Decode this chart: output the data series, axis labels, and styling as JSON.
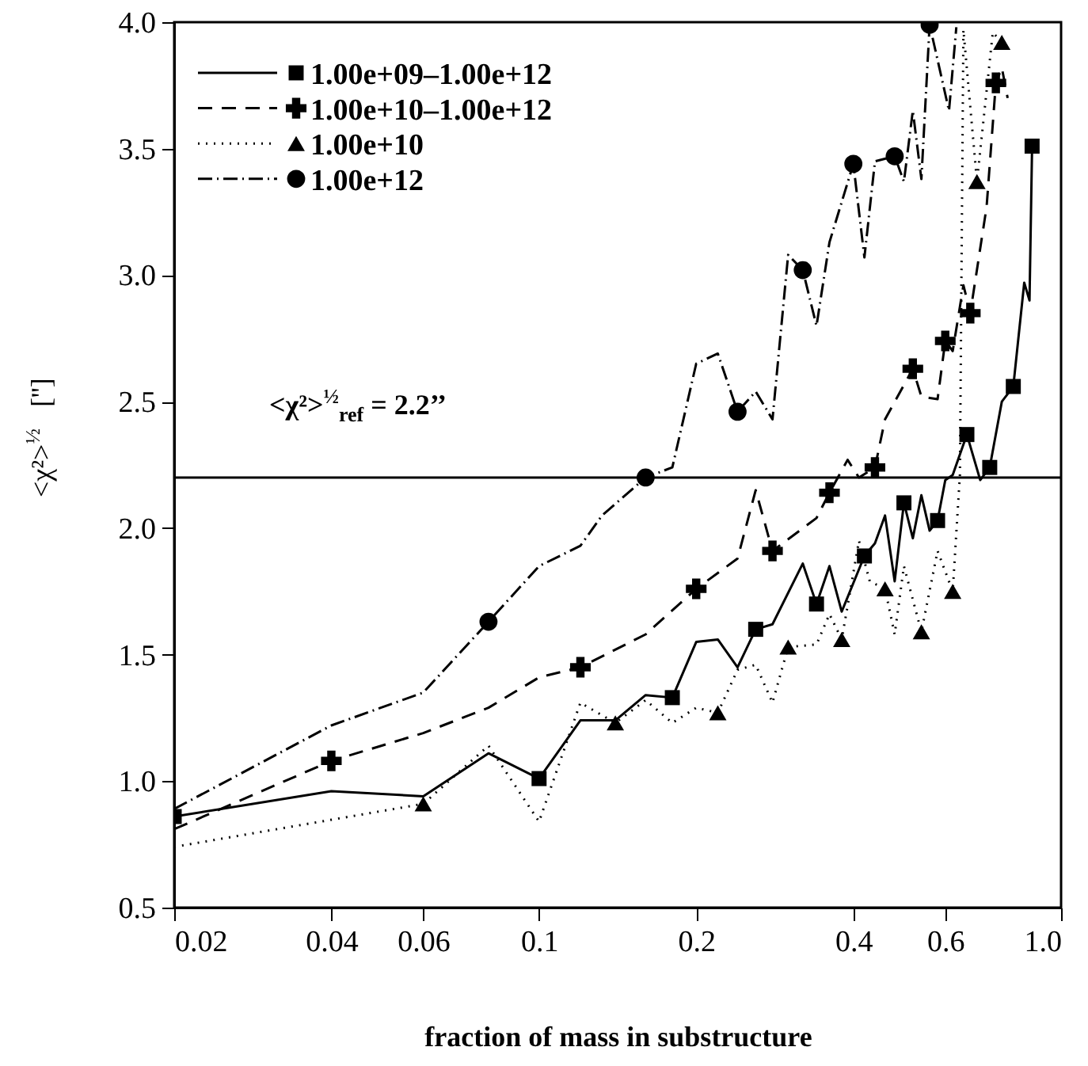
{
  "chart_data": {
    "type": "line",
    "xlabel": "fraction of mass in substructure",
    "ylabel": "<χ²>$^{½}$   ['']",
    "xlim": [
      0.02,
      1
    ],
    "xticks": [
      0.02,
      0.04,
      0.06,
      0.1,
      0.2,
      0.4,
      0.6,
      {
        "value": 1,
        "label": "1.0"
      }
    ],
    "ylim": [
      0.5,
      4
    ],
    "yticks": [
      0.5,
      {
        "value": 1,
        "label": "1.0"
      },
      1.5,
      {
        "value": 2,
        "label": "2.0"
      },
      2.5,
      {
        "value": 3,
        "label": "3.0"
      },
      3.5,
      {
        "value": 4,
        "label": "4.0"
      }
    ],
    "log": "x",
    "grid": false,
    "legend": "top left",
    "ref_lines": [
      {
        "axis": "y",
        "value": 2.2,
        "label": "<χ²>$^{½}$$_{ref}$ = 2.2’’",
        "color": "#000000"
      }
    ],
    "series": [
      {
        "name": "1.00e+09–1.00e+12",
        "type": "line",
        "line_style": "solid",
        "color": "#000000",
        "x": [
          0.02,
          0.04,
          0.06,
          0.08,
          0.1,
          0.12,
          0.14,
          0.16,
          0.18,
          0.2,
          0.22,
          0.24,
          0.26,
          0.28,
          0.32,
          0.34,
          0.36,
          0.38,
          0.42,
          0.44,
          0.46,
          0.48,
          0.5,
          0.52,
          0.54,
          0.56,
          0.58,
          0.6,
          0.62,
          0.66,
          0.7,
          0.73,
          0.77,
          0.81,
          0.85,
          0.87,
          0.88
        ],
        "values": [
          0.86,
          0.96,
          0.94,
          1.11,
          1.01,
          1.24,
          1.24,
          1.34,
          1.33,
          1.55,
          1.56,
          1.45,
          1.6,
          1.62,
          1.86,
          1.7,
          1.85,
          1.67,
          1.89,
          1.94,
          2.05,
          1.79,
          2.1,
          1.96,
          2.13,
          1.99,
          2.03,
          2.19,
          2.21,
          2.37,
          2.19,
          2.24,
          2.5,
          2.56,
          2.97,
          2.9,
          3.51
        ]
      },
      {
        "type": "scatter",
        "marker": "square",
        "color": "#000000",
        "x": [
          0.02,
          0.1,
          0.18,
          0.26,
          0.34,
          0.42,
          0.5,
          0.58,
          0.66,
          0.73,
          0.81,
          0.88
        ],
        "values": [
          0.86,
          1.01,
          1.33,
          1.6,
          1.7,
          1.89,
          2.1,
          2.03,
          2.37,
          2.24,
          2.56,
          3.51
        ]
      },
      {
        "name": "1.00e+10–1.00e+12",
        "type": "line",
        "line_style": "dashed",
        "color": "#000000",
        "x": [
          0.02,
          0.04,
          0.06,
          0.08,
          0.1,
          0.12,
          0.16,
          0.2,
          0.24,
          0.26,
          0.28,
          0.34,
          0.36,
          0.39,
          0.41,
          0.44,
          0.46,
          0.52,
          0.54,
          0.58,
          0.6,
          0.62,
          0.65,
          0.67,
          0.72,
          0.75,
          0.77,
          0.79
        ],
        "values": [
          0.81,
          1.08,
          1.19,
          1.29,
          1.41,
          1.45,
          1.58,
          1.76,
          1.88,
          2.15,
          1.91,
          2.04,
          2.14,
          2.27,
          2.2,
          2.24,
          2.43,
          2.63,
          2.52,
          2.51,
          2.74,
          2.7,
          2.96,
          2.85,
          3.27,
          3.76,
          3.82,
          3.7
        ]
      },
      {
        "type": "scatter",
        "marker": "cross",
        "color": "#000000",
        "x": [
          0.04,
          0.12,
          0.2,
          0.28,
          0.36,
          0.44,
          0.52,
          0.6,
          0.67,
          0.75
        ],
        "values": [
          1.08,
          1.45,
          1.76,
          1.91,
          2.14,
          2.24,
          2.63,
          2.74,
          2.85,
          3.76
        ]
      },
      {
        "name": "1.00e+10",
        "type": "line",
        "line_style": "dotted",
        "color": "#000000",
        "x": [
          0.02,
          0.06,
          0.08,
          0.1,
          0.12,
          0.14,
          0.16,
          0.18,
          0.2,
          0.22,
          0.24,
          0.26,
          0.28,
          0.3,
          0.34,
          0.36,
          0.38,
          0.41,
          0.43,
          0.46,
          0.48,
          0.5,
          0.54,
          0.58,
          0.62,
          0.64,
          0.65,
          0.69,
          0.74,
          0.77
        ],
        "values": [
          0.74,
          0.91,
          1.14,
          0.84,
          1.31,
          1.23,
          1.32,
          1.23,
          1.29,
          1.27,
          1.44,
          1.46,
          1.31,
          1.53,
          1.54,
          1.66,
          1.56,
          1.95,
          1.79,
          1.76,
          1.58,
          1.85,
          1.59,
          1.91,
          1.75,
          2.21,
          3.97,
          3.37,
          3.96,
          3.92
        ]
      },
      {
        "type": "scatter",
        "marker": "triangle",
        "color": "#000000",
        "x": [
          0.06,
          0.14,
          0.22,
          0.3,
          0.38,
          0.46,
          0.54,
          0.62,
          0.69,
          0.77
        ],
        "values": [
          0.91,
          1.23,
          1.27,
          1.53,
          1.56,
          1.76,
          1.59,
          1.75,
          3.37,
          3.92
        ]
      },
      {
        "name": "1.00e+12",
        "type": "line",
        "line_style": "dashdot",
        "color": "#000000",
        "x": [
          0.02,
          0.04,
          0.06,
          0.08,
          0.1,
          0.12,
          0.132,
          0.16,
          0.18,
          0.2,
          0.22,
          0.24,
          0.26,
          0.28,
          0.3,
          0.32,
          0.34,
          0.36,
          0.4,
          0.42,
          0.44,
          0.48,
          0.5,
          0.52,
          0.54,
          0.56,
          0.61,
          0.63
        ],
        "values": [
          0.89,
          1.22,
          1.35,
          1.63,
          1.85,
          1.93,
          2.05,
          2.2,
          2.24,
          2.65,
          2.69,
          2.46,
          2.54,
          2.43,
          3.08,
          3.02,
          2.8,
          3.13,
          3.44,
          3.07,
          3.45,
          3.47,
          3.37,
          3.65,
          3.38,
          3.99,
          3.65,
          3.98
        ]
      },
      {
        "type": "scatter",
        "marker": "circle",
        "color": "#000000",
        "x": [
          0.08,
          0.16,
          0.24,
          0.32,
          0.4,
          0.48,
          0.56
        ],
        "values": [
          1.63,
          2.2,
          2.46,
          3.02,
          3.44,
          3.47,
          3.99
        ]
      }
    ]
  }
}
